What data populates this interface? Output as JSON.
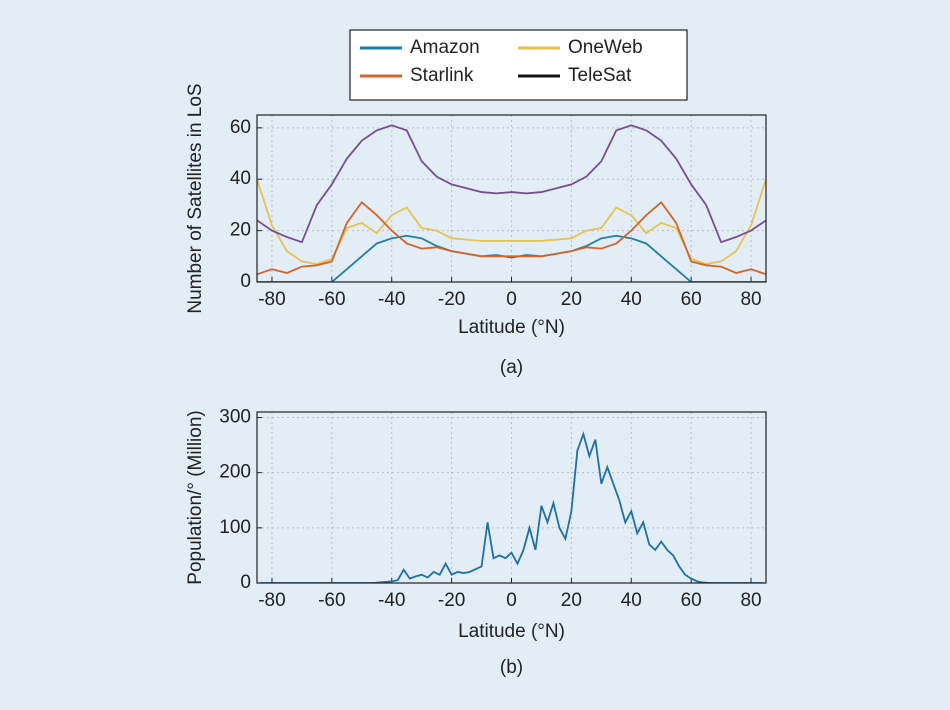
{
  "chart_data": [
    {
      "type": "line",
      "caption": "(a)",
      "x_label": "Latitude (°N)",
      "y_label": "Number of Satellites in LoS",
      "x": [
        -85,
        -80,
        -75,
        -70,
        -65,
        -60,
        -55,
        -50,
        -45,
        -40,
        -35,
        -30,
        -25,
        -20,
        -15,
        -10,
        -5,
        0,
        5,
        10,
        15,
        20,
        25,
        30,
        35,
        40,
        45,
        50,
        55,
        60,
        65,
        70,
        75,
        80,
        85
      ],
      "series": [
        {
          "name": "Amazon",
          "color": "#1f7fa6",
          "values": [
            0,
            0,
            0,
            0,
            0,
            0,
            5,
            10,
            15,
            17,
            18,
            17,
            14,
            12,
            11,
            10,
            10.5,
            9.5,
            10.5,
            10,
            11,
            12,
            14,
            17,
            18,
            17,
            15,
            10,
            5,
            0,
            0,
            0,
            0,
            0,
            0
          ]
        },
        {
          "name": "OneWeb",
          "color": "#e8c24e",
          "values": [
            40,
            22,
            12,
            8,
            7,
            9,
            21,
            23,
            19,
            26,
            29,
            21,
            20,
            17,
            16.5,
            16,
            16,
            16,
            16,
            16,
            16.5,
            17,
            20,
            21,
            29,
            26,
            19,
            23,
            21,
            9,
            7,
            8,
            12,
            22,
            40
          ]
        },
        {
          "name": "Starlink",
          "color": "#d2642c",
          "values": [
            3,
            5,
            3.5,
            6,
            6.5,
            8,
            23,
            31,
            26,
            20,
            15,
            13,
            13.5,
            12,
            11,
            10,
            10,
            10,
            10,
            10,
            11,
            12,
            13.5,
            13,
            15,
            20,
            26,
            31,
            23,
            8,
            6.5,
            6,
            3.5,
            5,
            3
          ]
        },
        {
          "name": "TeleSat",
          "color": "#7a4d92",
          "legend_color": "#111111",
          "values": [
            24,
            20,
            17.5,
            15.5,
            30,
            38,
            48,
            55,
            59,
            61,
            59,
            47,
            41,
            38,
            36.5,
            35,
            34.5,
            35,
            34.5,
            35,
            36.5,
            38,
            41,
            47,
            59,
            61,
            59,
            55,
            48,
            38,
            30,
            15.5,
            17.5,
            20,
            24
          ]
        }
      ],
      "xlim": [
        -85,
        85
      ],
      "xticks": [
        -80,
        -60,
        -40,
        -20,
        0,
        20,
        40,
        60,
        80
      ],
      "ylim": [
        0,
        65
      ],
      "yticks": [
        0,
        20,
        40,
        60
      ],
      "grid": true,
      "legend": "top"
    },
    {
      "type": "line",
      "caption": "(b)",
      "x_label": "Latitude (°N)",
      "y_label": "Population/° (Million)",
      "x": [
        -84,
        -82,
        -80,
        -78,
        -76,
        -74,
        -72,
        -70,
        -68,
        -66,
        -64,
        -62,
        -60,
        -58,
        -56,
        -54,
        -52,
        -50,
        -48,
        -46,
        -44,
        -42,
        -40,
        -38,
        -36,
        -34,
        -32,
        -30,
        -28,
        -26,
        -24,
        -22,
        -20,
        -18,
        -16,
        -14,
        -12,
        -10,
        -8,
        -6,
        -4,
        -2,
        0,
        2,
        4,
        6,
        8,
        10,
        12,
        14,
        16,
        18,
        20,
        22,
        24,
        26,
        28,
        30,
        32,
        34,
        36,
        38,
        40,
        42,
        44,
        46,
        48,
        50,
        52,
        54,
        56,
        58,
        60,
        62,
        64,
        66,
        68,
        70,
        72,
        74,
        76,
        78,
        80,
        82,
        84
      ],
      "values": [
        0,
        0,
        0,
        0,
        0,
        0,
        0,
        0,
        0,
        0,
        0,
        0,
        0,
        0,
        0,
        0,
        0,
        0,
        0,
        0,
        1,
        2,
        3,
        5,
        24,
        8,
        12,
        15,
        10,
        20,
        15,
        35,
        15,
        20,
        18,
        20,
        25,
        30,
        110,
        45,
        50,
        45,
        55,
        35,
        60,
        100,
        60,
        140,
        110,
        145,
        100,
        80,
        130,
        240,
        270,
        230,
        260,
        180,
        210,
        180,
        150,
        110,
        130,
        90,
        110,
        70,
        60,
        75,
        60,
        50,
        30,
        15,
        8,
        3,
        1,
        0,
        0,
        0,
        0,
        0,
        0,
        0,
        0,
        0,
        0
      ],
      "color": "#1f6fa8",
      "xlim": [
        -85,
        85
      ],
      "xticks": [
        -80,
        -60,
        -40,
        -20,
        0,
        20,
        40,
        60,
        80
      ],
      "ylim": [
        0,
        310
      ],
      "yticks": [
        0,
        100,
        200,
        300
      ],
      "grid": true
    }
  ]
}
